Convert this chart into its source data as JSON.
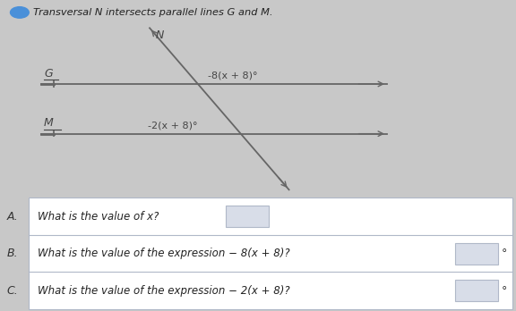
{
  "title": "Transversal N intersects parallel lines G and M.",
  "bg_color": "#c8c8c8",
  "diagram_bg": "#e8e8e8",
  "line_color": "#666666",
  "label_color": "#444444",
  "row_A_label": "A.",
  "row_B_label": "B.",
  "row_C_label": "C.",
  "row_A_text": "What is the value of x?",
  "row_B_text": "What is the value of the expression − 8(x + 8)?",
  "row_C_text": "What is the value of the expression − 2(x + 8)?",
  "degree_symbol": "°",
  "line_G_label": "G",
  "line_M_label": "M",
  "transversal_label": "N",
  "angle_G_label": "-8(x + 8)°",
  "angle_M_label": "-2(x + 8)°",
  "icon_color": "#4a90d9",
  "panel_white": "#f5f5f5",
  "panel_border": "#b0b8c8",
  "box_fill": "#d8dde8"
}
